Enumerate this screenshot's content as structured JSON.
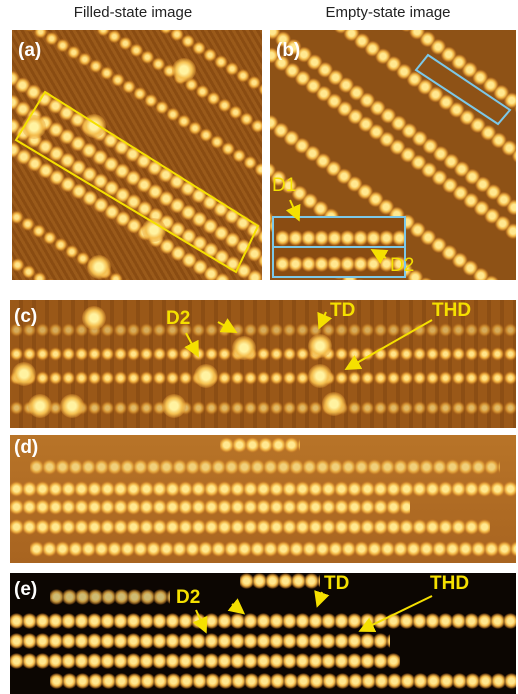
{
  "header": {
    "filled": "Filled-state image",
    "empty": "Empty-state image"
  },
  "panels": [
    {
      "label": "(a)"
    },
    {
      "label": "(b)",
      "annotations": [
        "D1",
        "D2"
      ]
    },
    {
      "label": "(c)",
      "annotations": [
        "D2",
        "TD",
        "THD"
      ]
    },
    {
      "label": "(d)"
    },
    {
      "label": "(e)",
      "annotations": [
        "D2",
        "TD",
        "THD"
      ]
    }
  ]
}
